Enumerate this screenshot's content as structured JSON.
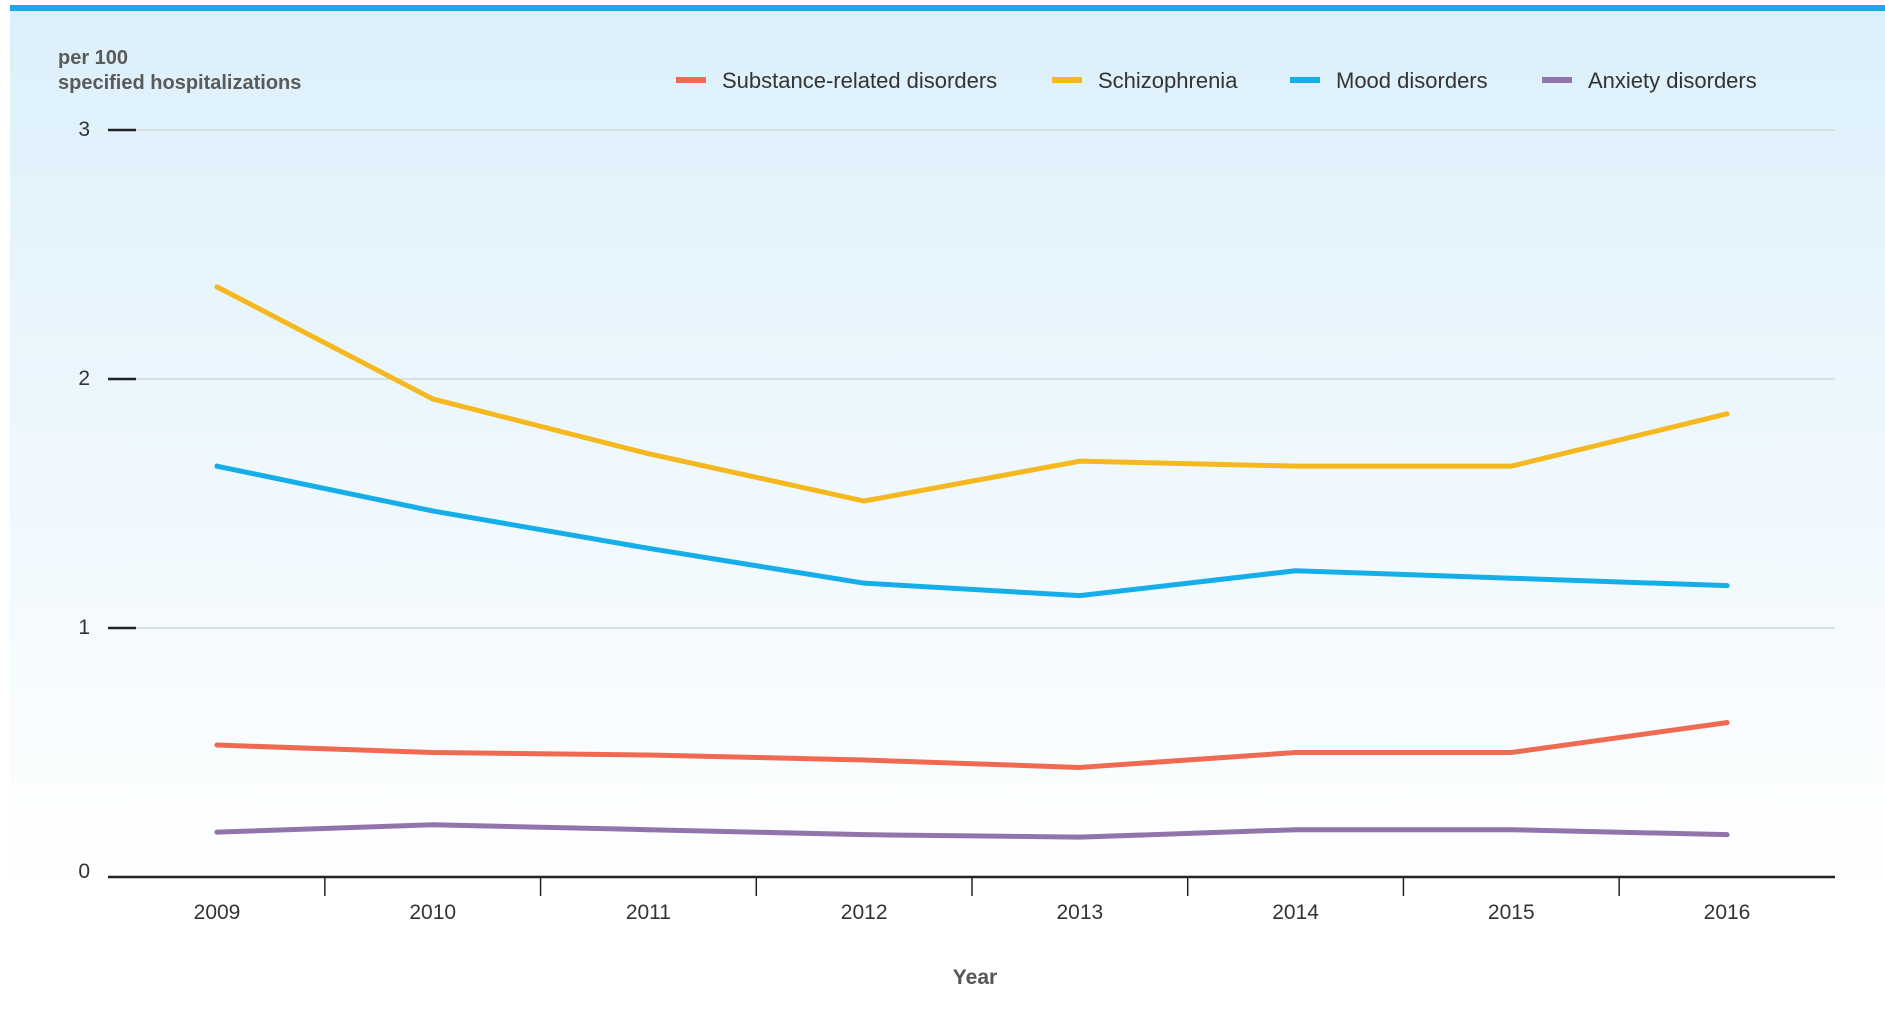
{
  "chart_data": {
    "type": "line",
    "ylabel_line1": "per 100",
    "ylabel_line2": "specified hospitalizations",
    "xlabel": "Year",
    "categories": [
      "2009",
      "2010",
      "2011",
      "2012",
      "2013",
      "2014",
      "2015",
      "2016"
    ],
    "y_ticks": [
      "0",
      "1",
      "2",
      "3"
    ],
    "ylim": [
      0,
      3
    ],
    "grid": true,
    "legend_position": "top-right",
    "series": [
      {
        "name": "Substance-related disorders",
        "color": "#ef6a50",
        "values": [
          0.53,
          0.5,
          0.49,
          0.47,
          0.44,
          0.5,
          0.5,
          0.62
        ]
      },
      {
        "name": "Schizophrenia",
        "color": "#f5b81e",
        "values": [
          2.37,
          1.92,
          1.7,
          1.51,
          1.67,
          1.65,
          1.65,
          1.86
        ]
      },
      {
        "name": "Mood disorders",
        "color": "#16aee8",
        "values": [
          1.65,
          1.47,
          1.32,
          1.18,
          1.13,
          1.23,
          1.2,
          1.17
        ]
      },
      {
        "name": "Anxiety disorders",
        "color": "#9274ac",
        "values": [
          0.18,
          0.21,
          0.19,
          0.17,
          0.16,
          0.19,
          0.19,
          0.17
        ]
      }
    ]
  }
}
